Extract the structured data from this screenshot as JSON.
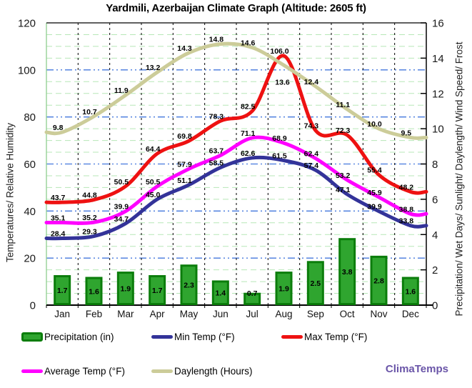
{
  "title": "Yardmili, Azerbaijan Climate Graph (Altitude: 2605 ft)",
  "brand": "ClimaTemps",
  "left_axis": {
    "label": "Temperatures/ Relative Humidity",
    "min": 0,
    "max": 120,
    "step": 20
  },
  "right_axis": {
    "label": "Precipitation/ Wet Days/ Sunlight/ Daylength/ Wind Speed/ Frost",
    "min": 0,
    "max": 16,
    "step": 2
  },
  "colors": {
    "max_temp": "#ee1111",
    "min_temp": "#333399",
    "avg_temp": "#ff00ff",
    "daylength": "#cccc99",
    "precip_fill": "#2fa52f",
    "precip_border": "#0b7d0b",
    "grid_minor": "#b7e7b7",
    "grid_major": "#4477dd",
    "grid_vertical": "#000000",
    "axis": "#000000",
    "plot_left_border": "#8fce8f",
    "brand": "#6a55a8"
  },
  "legend": {
    "items": [
      {
        "id": "precipitation",
        "label": "Precipitation (in)"
      },
      {
        "id": "min_temp",
        "label": "Min Temp (°F)"
      },
      {
        "id": "max_temp",
        "label": "Max Temp (°F)"
      },
      {
        "id": "avg_temp",
        "label": "Average Temp (°F)"
      },
      {
        "id": "daylength",
        "label": "Daylength (Hours)"
      }
    ]
  },
  "chart_data": {
    "type": "bar+line combo",
    "categories": [
      "Jan",
      "Feb",
      "Mar",
      "Apr",
      "May",
      "Jun",
      "Jul",
      "Aug",
      "Sep",
      "Oct",
      "Nov",
      "Dec"
    ],
    "left_axis_range": [
      0,
      120
    ],
    "right_axis_range": [
      0,
      16
    ],
    "grid": "minor green dashed every 5 left-units, blue dash-dot every 20 left-units, black dashed vertical month boundaries",
    "legend_position": "bottom",
    "series": [
      {
        "id": "precipitation",
        "name": "Precipitation (in)",
        "type": "bar",
        "axis": "right",
        "color": "#2fa52f",
        "border_color": "#0b7d0b",
        "values": [
          1.7,
          1.6,
          1.9,
          1.7,
          2.3,
          1.4,
          0.7,
          1.9,
          2.5,
          3.8,
          2.8,
          1.6
        ]
      },
      {
        "id": "min_temp",
        "name": "Min Temp (°F)",
        "type": "line",
        "axis": "left",
        "color": "#333399",
        "values": [
          28.4,
          29.3,
          34.7,
          45.0,
          51.1,
          58.5,
          62.6,
          61.5,
          57.4,
          47.1,
          39.9,
          33.8
        ]
      },
      {
        "id": "max_temp",
        "name": "Max Temp (°F)",
        "type": "line",
        "axis": "left",
        "color": "#ee1111",
        "values": [
          43.7,
          44.8,
          50.5,
          64.4,
          69.8,
          78.3,
          82.5,
          106.0,
          74.3,
          72.3,
          55.4,
          48.2
        ]
      },
      {
        "id": "avg_temp",
        "name": "Average Temp (°F)",
        "type": "line",
        "axis": "left",
        "color": "#ff00ff",
        "values": [
          35.1,
          35.2,
          39.9,
          50.5,
          57.9,
          63.7,
          71.1,
          68.9,
          62.4,
          53.2,
          45.9,
          38.8
        ]
      },
      {
        "id": "daylength",
        "name": "Daylength (Hours)",
        "type": "line",
        "axis": "right",
        "color": "#cccc99",
        "values": [
          9.8,
          10.7,
          11.9,
          13.2,
          14.3,
          14.8,
          14.6,
          13.6,
          12.4,
          11.1,
          10.0,
          9.5
        ]
      }
    ]
  }
}
